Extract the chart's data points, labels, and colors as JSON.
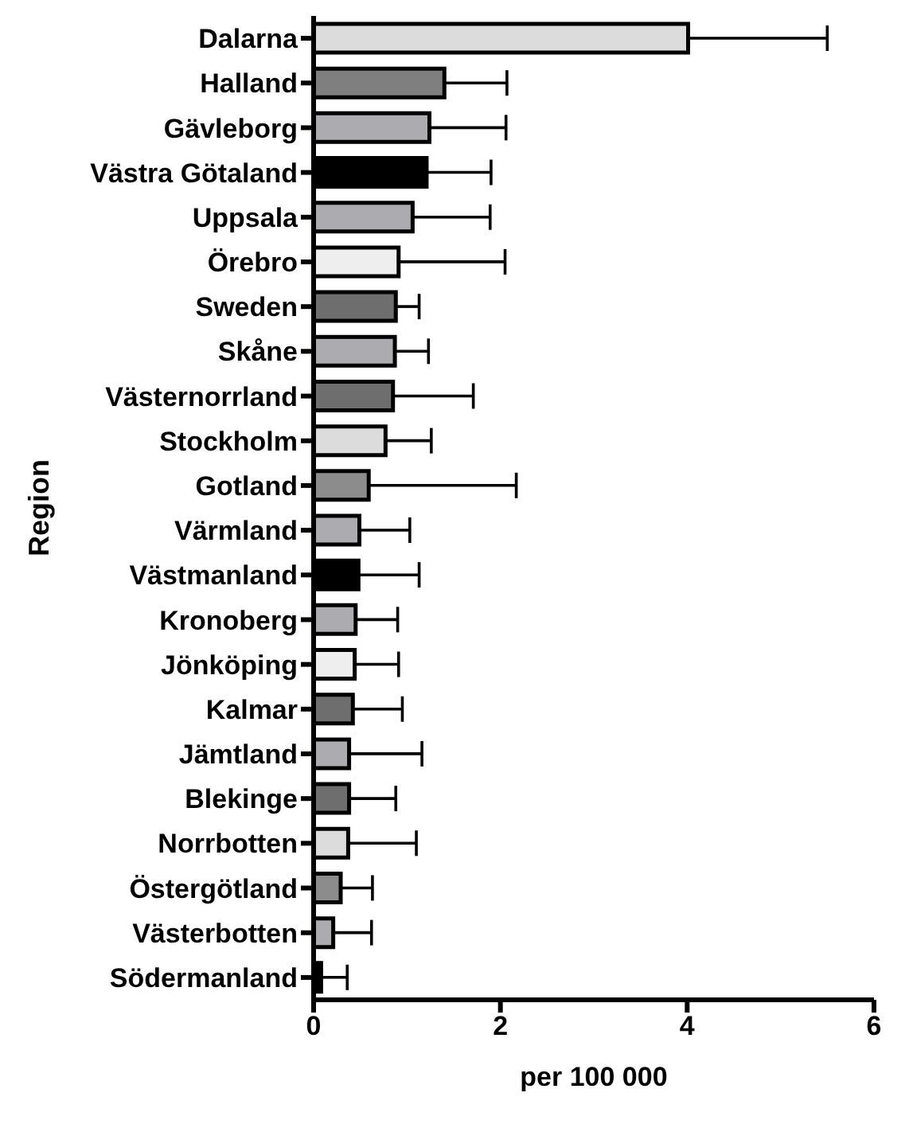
{
  "chart_data": {
    "type": "bar",
    "orientation": "horizontal",
    "xlabel": "per 100 000",
    "ylabel": "Region",
    "categories": [
      "Dalarna",
      "Halland",
      "Gävleborg",
      "Västra Götaland",
      "Uppsala",
      "Örebro",
      "Sweden",
      "Skåne",
      "Västernorrland",
      "Stockholm",
      "Gotland",
      "Värmland",
      "Västmanland",
      "Kronoberg",
      "Jönköping",
      "Kalmar",
      "Jämtland",
      "Blekinge",
      "Norrbotten",
      "Östergötland",
      "Västerbotten",
      "Södermanland"
    ],
    "values": [
      4.01,
      1.4,
      1.24,
      1.21,
      1.06,
      0.91,
      0.88,
      0.87,
      0.85,
      0.77,
      0.59,
      0.49,
      0.48,
      0.45,
      0.44,
      0.42,
      0.38,
      0.38,
      0.37,
      0.29,
      0.21,
      0.08
    ],
    "errors": [
      [
        4.01,
        5.5
      ],
      [
        1.4,
        2.07
      ],
      [
        1.24,
        2.06
      ],
      [
        1.21,
        1.9
      ],
      [
        1.06,
        1.89
      ],
      [
        0.91,
        2.05
      ],
      [
        0.88,
        1.13
      ],
      [
        0.87,
        1.23
      ],
      [
        0.85,
        1.71
      ],
      [
        0.77,
        1.26
      ],
      [
        0.59,
        2.17
      ],
      [
        0.49,
        1.03
      ],
      [
        0.48,
        1.13
      ],
      [
        0.45,
        0.9
      ],
      [
        0.44,
        0.91
      ],
      [
        0.42,
        0.95
      ],
      [
        0.38,
        1.16
      ],
      [
        0.38,
        0.88
      ],
      [
        0.37,
        1.1
      ],
      [
        0.29,
        0.63
      ],
      [
        0.21,
        0.62
      ],
      [
        0.08,
        0.36
      ]
    ],
    "colors": [
      "#dcdcdc",
      "#7f7f7f",
      "#ababb0",
      "#000000",
      "#ababb0",
      "#eeeeee",
      "#6e6e6e",
      "#ababb0",
      "#6e6e6e",
      "#dcdcdc",
      "#8c8c8c",
      "#ababb0",
      "#000000",
      "#ababb0",
      "#eeeeee",
      "#6e6e6e",
      "#ababb0",
      "#6e6e6e",
      "#dcdcdc",
      "#8c8c8c",
      "#ababb0",
      "#000000"
    ],
    "xlim": [
      0,
      6
    ],
    "xticks": [
      0,
      2,
      4,
      6
    ],
    "grid": false,
    "legend": false
  }
}
